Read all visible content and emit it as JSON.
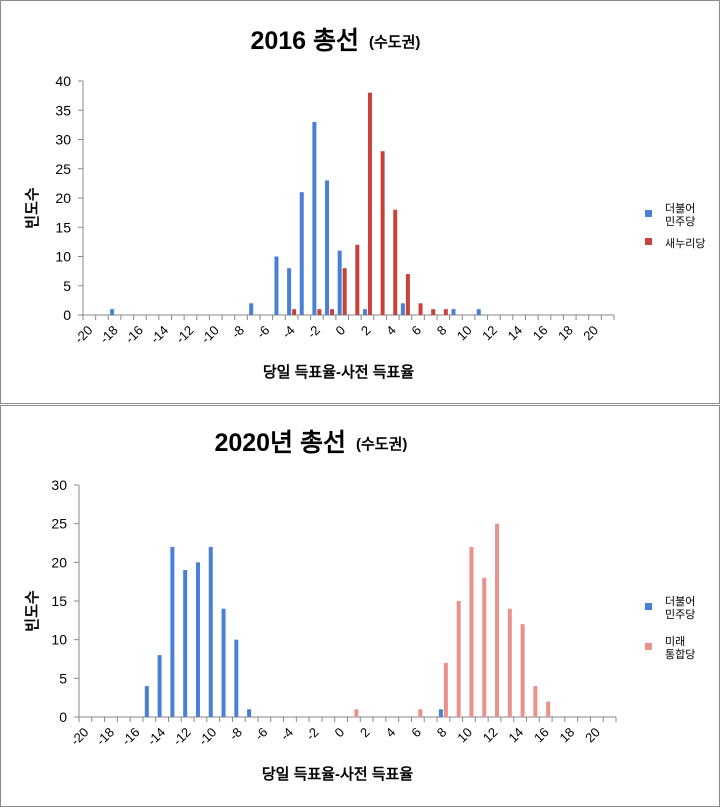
{
  "chart_data": [
    {
      "type": "bar",
      "title": "2016 총선",
      "subtitle": "(수도권)",
      "xlabel": "당일 득표율-사전 득표율",
      "ylabel": "빈도수",
      "ylim": [
        0,
        40
      ],
      "ytick_step": 5,
      "xrange": [
        -20,
        21
      ],
      "xtick_labels": [
        "-20",
        "-18",
        "-16",
        "-14",
        "-12",
        "-10",
        "-8",
        "-6",
        "-4",
        "-2",
        "0",
        "2",
        "4",
        "6",
        "8",
        "10",
        "12",
        "14",
        "16",
        "18",
        "20"
      ],
      "legend_position": "right",
      "series": [
        {
          "name": "더불어\n민주당",
          "color": "#4a7fd6",
          "points": {
            "-18": 1,
            "-7": 2,
            "-5": 10,
            "-4": 8,
            "-3": 21,
            "-2": 33,
            "-1": 23,
            "0": 11,
            "2": 1,
            "5": 2,
            "9": 1,
            "11": 1
          }
        },
        {
          "name": "새누리당",
          "color": "#c8423c",
          "points": {
            "-4": 1,
            "-2": 1,
            "-1": 1,
            "0": 8,
            "1": 12,
            "2": 38,
            "3": 28,
            "4": 18,
            "5": 7,
            "6": 2,
            "7": 1,
            "8": 1
          }
        }
      ]
    },
    {
      "type": "bar",
      "title": "2020년 총선",
      "subtitle": "(수도권)",
      "xlabel": "당일 득표율-사전 득표율",
      "ylabel": "빈도수",
      "ylim": [
        0,
        30
      ],
      "ytick_step": 5,
      "xrange": [
        -20,
        21
      ],
      "xtick_labels": [
        "-20",
        "-18",
        "-16",
        "-14",
        "-12",
        "-10",
        "-8",
        "-6",
        "-4",
        "-2",
        "0",
        "2",
        "4",
        "6",
        "8",
        "10",
        "12",
        "14",
        "16",
        "18",
        "20"
      ],
      "legend_position": "right",
      "series": [
        {
          "name": "더불어\n민주당",
          "color": "#4a7fd6",
          "points": {
            "-15": 4,
            "-14": 8,
            "-13": 22,
            "-12": 19,
            "-11": 20,
            "-10": 22,
            "-9": 14,
            "-8": 10,
            "-7": 1,
            "8": 1
          }
        },
        {
          "name": "미래\n통합당",
          "color": "#e8928b",
          "points": {
            "1": 1,
            "6": 1,
            "8": 7,
            "9": 15,
            "10": 22,
            "11": 18,
            "12": 25,
            "13": 14,
            "14": 12,
            "15": 4,
            "16": 2
          }
        }
      ]
    }
  ]
}
